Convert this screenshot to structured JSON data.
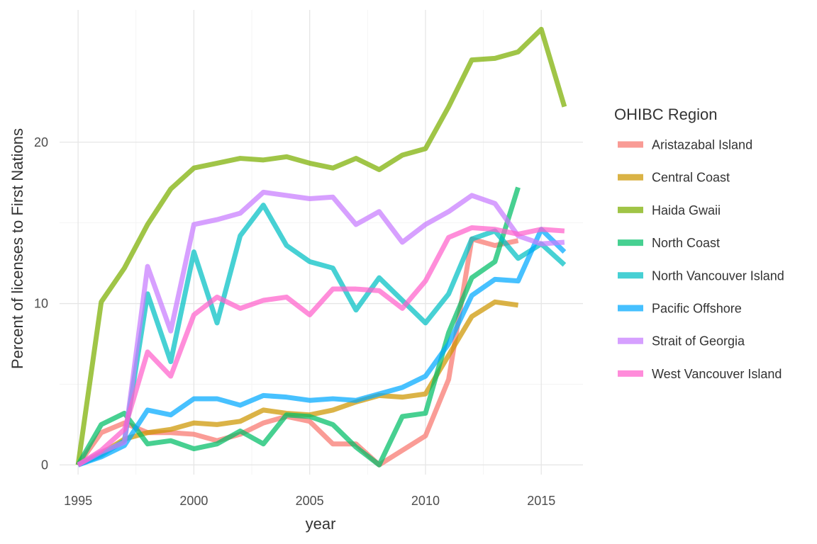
{
  "chart_data": {
    "type": "line",
    "title": "",
    "xlabel": "year",
    "ylabel": "Percent of licenses to First Nations",
    "xlim": [
      1994.2,
      2016.8
    ],
    "ylim": [
      -0.6,
      28.2
    ],
    "x_ticks": [
      1995,
      2000,
      2005,
      2010,
      2015
    ],
    "y_ticks": [
      0,
      10,
      20
    ],
    "grid": true,
    "legend": {
      "title": "OHIBC Region",
      "position": "right"
    },
    "x": [
      1995,
      1996,
      1997,
      1998,
      1999,
      2000,
      2001,
      2002,
      2003,
      2004,
      2005,
      2006,
      2007,
      2008,
      2009,
      2010,
      2011,
      2012,
      2013,
      2014,
      2015,
      2016
    ],
    "series": [
      {
        "name": "Aristazabal Island",
        "color": "#F8766D",
        "values": [
          0,
          2.0,
          2.6,
          2.0,
          2.0,
          1.9,
          1.5,
          1.9,
          2.6,
          3.0,
          2.7,
          1.3,
          1.3,
          0,
          0.9,
          1.8,
          5.3,
          14.0,
          13.6,
          13.9,
          null,
          null
        ]
      },
      {
        "name": "Central Coast",
        "color": "#CD9600",
        "values": [
          0,
          0.7,
          1.6,
          2.0,
          2.2,
          2.6,
          2.5,
          2.7,
          3.4,
          3.2,
          3.1,
          3.4,
          3.9,
          4.3,
          4.2,
          4.4,
          6.8,
          9.2,
          10.1,
          9.9,
          null,
          null
        ]
      },
      {
        "name": "Haida Gwaii",
        "color": "#7CAE00",
        "values": [
          0,
          10.1,
          12.2,
          14.9,
          17.1,
          18.4,
          18.7,
          19.0,
          18.9,
          19.1,
          18.7,
          18.4,
          19.0,
          18.3,
          19.2,
          19.6,
          22.2,
          25.1,
          25.2,
          25.6,
          27.0,
          22.2
        ]
      },
      {
        "name": "North Coast",
        "color": "#00BE67",
        "values": [
          0,
          2.5,
          3.2,
          1.3,
          1.5,
          1.0,
          1.3,
          2.1,
          1.3,
          3.1,
          3.0,
          2.5,
          1.1,
          0,
          3.0,
          3.2,
          8.2,
          11.6,
          12.6,
          17.2,
          null,
          null
        ]
      },
      {
        "name": "North Vancouver Island",
        "color": "#00BFC4",
        "values": [
          0,
          0.6,
          1.5,
          10.6,
          6.4,
          13.2,
          8.8,
          14.2,
          16.1,
          13.6,
          12.6,
          12.2,
          9.6,
          11.6,
          10.2,
          8.8,
          10.6,
          14.0,
          14.5,
          12.8,
          13.7,
          12.4
        ]
      },
      {
        "name": "Pacific Offshore",
        "color": "#00A9FF",
        "values": [
          0,
          0.5,
          1.2,
          3.4,
          3.1,
          4.1,
          4.1,
          3.7,
          4.3,
          4.2,
          4.0,
          4.1,
          4.0,
          4.4,
          4.8,
          5.5,
          7.5,
          10.5,
          11.5,
          11.4,
          14.6,
          13.2
        ]
      },
      {
        "name": "Strait of Georgia",
        "color": "#C77CFF",
        "values": [
          0,
          0.8,
          1.4,
          12.3,
          8.3,
          14.9,
          15.2,
          15.6,
          16.9,
          16.7,
          16.5,
          16.6,
          14.9,
          15.7,
          13.8,
          14.9,
          15.7,
          16.7,
          16.2,
          14.2,
          13.7,
          13.8
        ]
      },
      {
        "name": "West Vancouver Island",
        "color": "#FF61CC",
        "values": [
          0,
          0.9,
          2.2,
          7.0,
          5.5,
          9.3,
          10.4,
          9.7,
          10.2,
          10.4,
          9.3,
          10.9,
          10.9,
          10.8,
          9.7,
          11.4,
          14.1,
          14.7,
          14.6,
          14.3,
          14.6,
          14.5
        ]
      }
    ]
  }
}
